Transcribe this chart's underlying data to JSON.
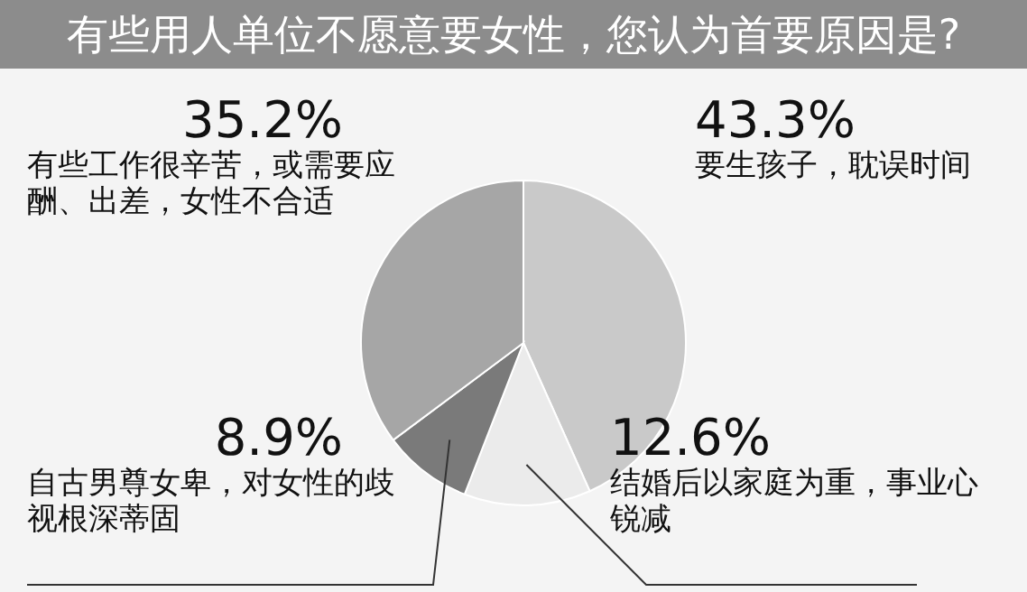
{
  "chart_data": {
    "type": "pie",
    "title": "有些用人单位不愿意要女性，您认为首要原因是?",
    "categories": [
      "要生孩子，耽误时间",
      "结婚后以家庭为重，事业心锐减",
      "自古男尊女卑，对女性的歧视根深蒂固",
      "有些工作很辛苦，或需要应酬、出差，女性不合适"
    ],
    "values": [
      43.3,
      12.6,
      8.9,
      35.2
    ],
    "colors": [
      "#c9c9c9",
      "#ebebeb",
      "#7a7a7a",
      "#a6a6a6"
    ],
    "value_labels": [
      "43.3%",
      "12.6%",
      "8.9%",
      "35.2%"
    ]
  }
}
